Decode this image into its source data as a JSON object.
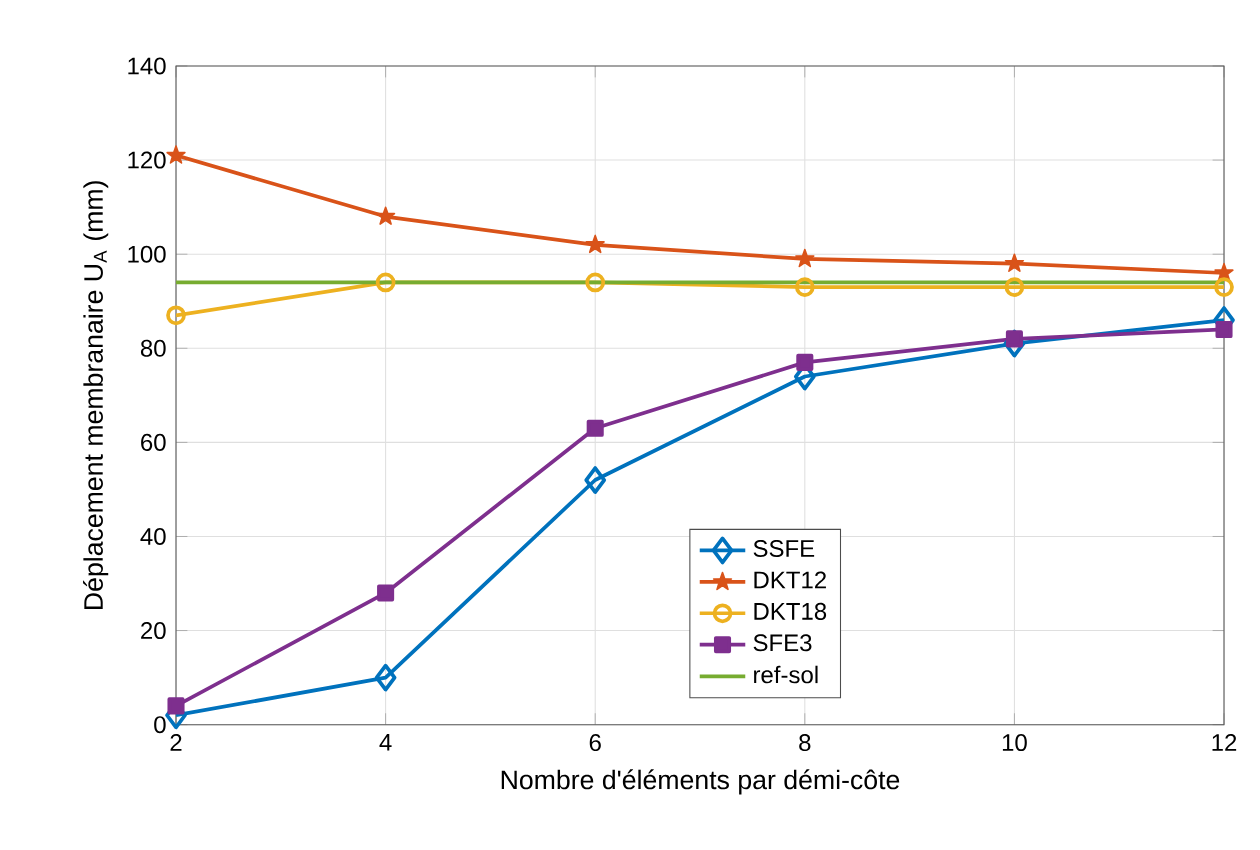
{
  "chart_data": {
    "type": "line",
    "xlabel": "Nombre d'éléments par démi-côte",
    "ylabel": "Déplacement membranaire U$_{A}$ (mm)",
    "x": [
      2,
      4,
      6,
      8,
      10,
      12
    ],
    "series": [
      {
        "name": "SSFE",
        "color": "#0072bd",
        "marker": "diamond",
        "values": [
          2,
          10,
          52,
          74,
          81,
          86
        ]
      },
      {
        "name": "DKT12",
        "color": "#d95319",
        "marker": "star",
        "values": [
          121,
          108,
          102,
          99,
          98,
          96
        ]
      },
      {
        "name": "DKT18",
        "color": "#edb120",
        "marker": "circle",
        "values": [
          87,
          94,
          94,
          93,
          93,
          93
        ]
      },
      {
        "name": "SFE3",
        "color": "#7e2f8e",
        "marker": "square",
        "values": [
          4,
          28,
          63,
          77,
          82,
          84
        ]
      },
      {
        "name": "ref-sol",
        "color": "#77ac30",
        "marker": "none",
        "values": [
          94,
          94,
          94,
          94,
          94,
          94
        ]
      }
    ],
    "xlim": [
      2,
      12
    ],
    "ylim": [
      0,
      140
    ],
    "xticks": [
      2,
      4,
      6,
      8,
      10,
      12
    ],
    "yticks": [
      0,
      20,
      40,
      60,
      80,
      100,
      120,
      140
    ],
    "grid": true,
    "legend": "bottom"
  }
}
